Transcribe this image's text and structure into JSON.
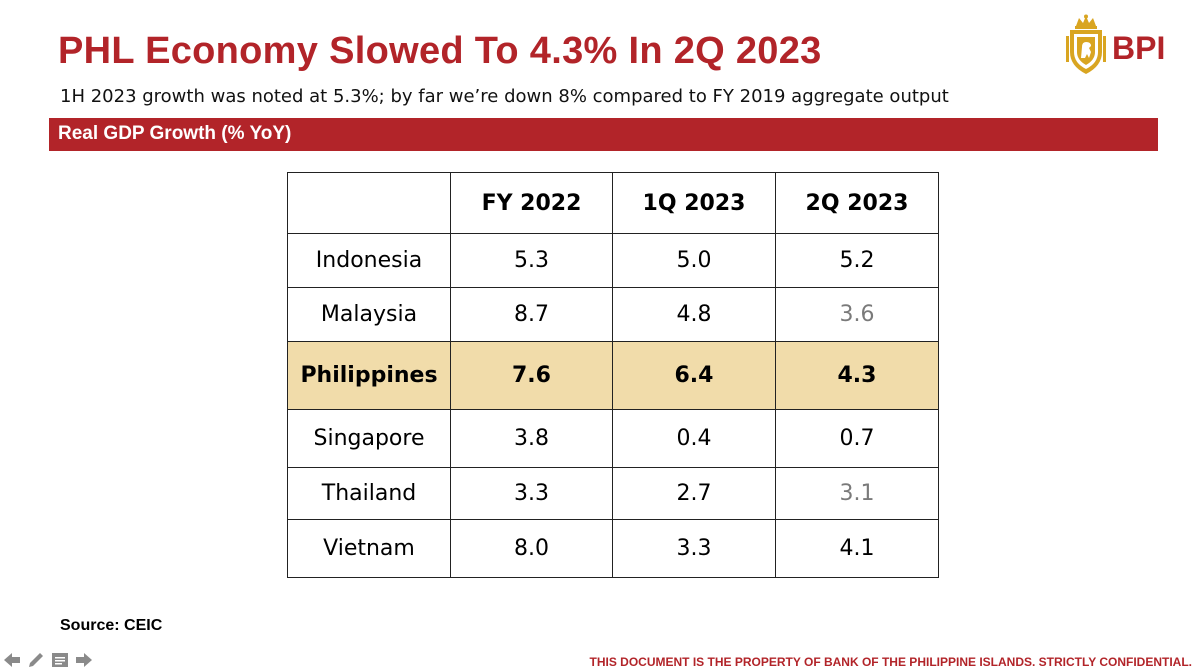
{
  "slide": {
    "title": "PHL Economy Slowed To 4.3% In 2Q 2023",
    "subtitle": "1H 2023 growth was noted at 5.3%; by far we’re down 8% compared to FY 2019 aggregate output",
    "section_label": "Real GDP Growth (% YoY)",
    "logo_text": "BPI",
    "source": "Source: CEIC",
    "disclaimer": "THIS DOCUMENT IS THE PROPERTY OF BANK OF THE PHILIPPINE ISLANDS.  STRICTLY CONFIDENTIAL."
  },
  "colors": {
    "accent_red": "#b22429",
    "highlight_row": "#f1dcaa",
    "logo_gold": "#d9a521",
    "muted_value": "#7a7a7a"
  },
  "table": {
    "headers": [
      "",
      "FY 2022",
      "1Q 2023",
      "2Q 2023"
    ],
    "rows": [
      {
        "country": "Indonesia",
        "values": [
          "5.3",
          "5.0",
          "5.2"
        ]
      },
      {
        "country": "Malaysia",
        "values": [
          "8.7",
          "4.8",
          "3.6"
        ]
      },
      {
        "country": "Philippines",
        "values": [
          "7.6",
          "6.4",
          "4.3"
        ]
      },
      {
        "country": "Singapore",
        "values": [
          "3.8",
          "0.4",
          "0.7"
        ]
      },
      {
        "country": "Thailand",
        "values": [
          "3.3",
          "2.7",
          "3.1"
        ]
      },
      {
        "country": "Vietnam",
        "values": [
          "8.0",
          "3.3",
          "4.1"
        ]
      }
    ]
  },
  "icons": [
    "prev-arrow-icon",
    "pen-icon",
    "notes-icon",
    "next-arrow-icon",
    "bpi-crest-icon"
  ]
}
